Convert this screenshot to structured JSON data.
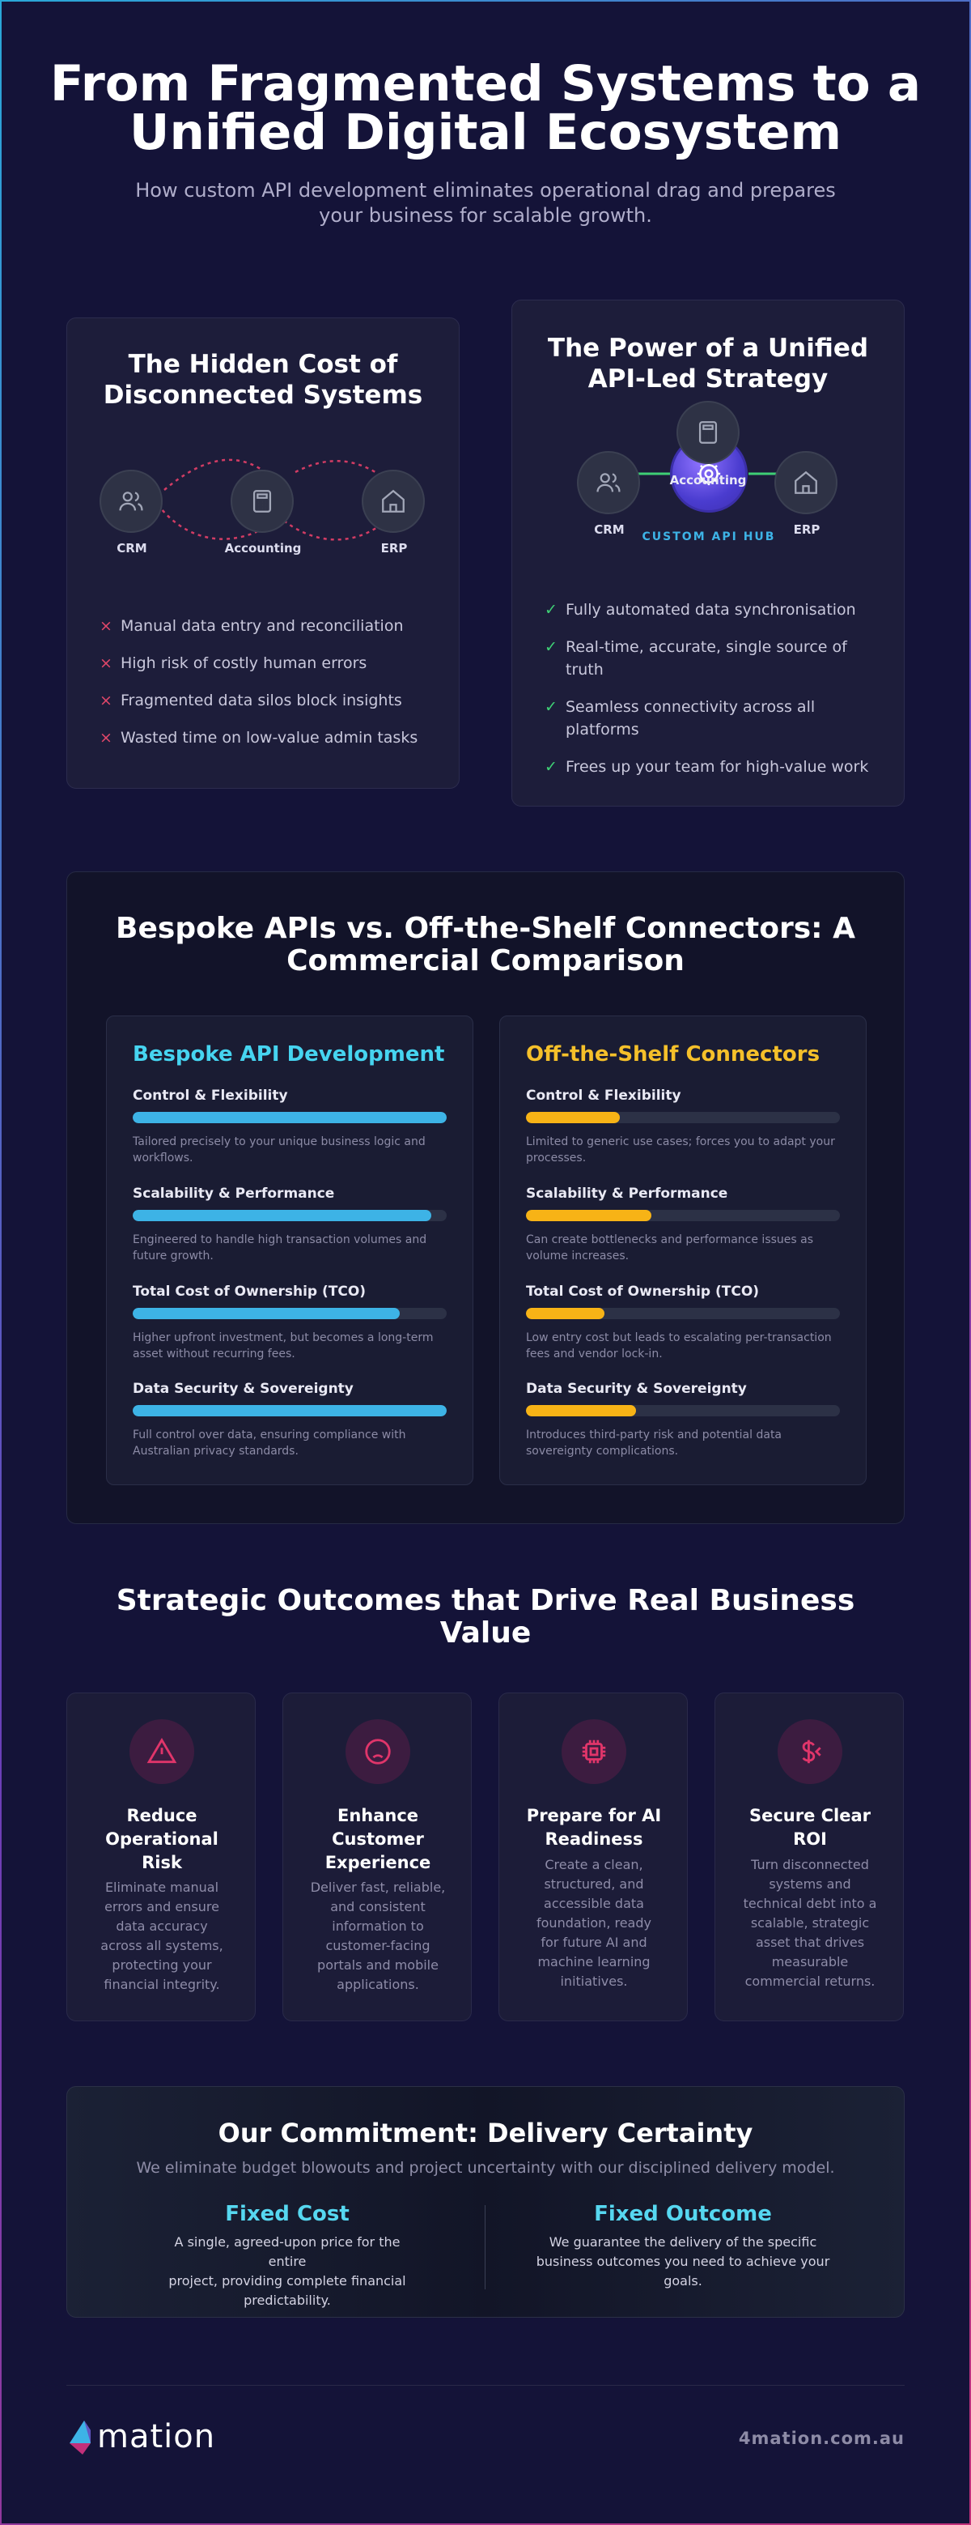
{
  "hero": {
    "title_line1": "From Fragmented Systems to a",
    "title_line2": "Unified Digital Ecosystem",
    "subtitle_line1": "How custom API development eliminates operational drag and prepares",
    "subtitle_line2": "your business for scalable growth."
  },
  "disconnected": {
    "title_line1": "The Hidden Cost of",
    "title_line2": "Disconnected Systems",
    "nodes": [
      {
        "label": "CRM",
        "icon": "users-icon"
      },
      {
        "label": "Accounting",
        "icon": "calculator-icon"
      },
      {
        "label": "ERP",
        "icon": "home-icon"
      }
    ],
    "marker": "×",
    "points": [
      "Manual data entry and reconciliation",
      "High risk of costly human errors",
      "Fragmented data silos block insights",
      "Wasted time on low-value admin tasks"
    ]
  },
  "unified": {
    "title_line1": "The Power of a Unified",
    "title_line2": "API-Led Strategy",
    "nodes": [
      {
        "label": "CRM",
        "icon": "users-icon"
      },
      {
        "label": "Accounting",
        "icon": "calculator-icon"
      },
      {
        "label": "ERP",
        "icon": "home-icon"
      }
    ],
    "hub_label": "CUSTOM API HUB",
    "marker": "✓",
    "points": [
      "Fully automated data synchronisation",
      "Real-time, accurate, single source of truth",
      "Seamless connectivity across all platforms",
      "Frees up your team for high-value work"
    ]
  },
  "comparison": {
    "title_line1": "Bespoke APIs vs. Off-the-Shelf Connectors: A",
    "title_line2": "Commercial Comparison",
    "bespoke": {
      "title": "Bespoke API Development",
      "color": "#46d4f0",
      "bar_color": "#3db3e6",
      "metrics": [
        {
          "name": "Control & Flexibility",
          "score": 100,
          "desc": "Tailored precisely to your unique business logic and workflows."
        },
        {
          "name": "Scalability & Performance",
          "score": 95,
          "desc": "Engineered to handle high transaction volumes and future growth."
        },
        {
          "name": "Total Cost of Ownership (TCO)",
          "score": 85,
          "desc": "Higher upfront investment, but becomes a long-term asset without recurring fees."
        },
        {
          "name": "Data Security & Sovereignty",
          "score": 100,
          "desc": "Full control over data, ensuring compliance with Australian privacy standards."
        }
      ]
    },
    "offshelf": {
      "title": "Off-the-Shelf Connectors",
      "color": "#f5c02a",
      "bar_color": "#f7b316",
      "metrics": [
        {
          "name": "Control & Flexibility",
          "score": 30,
          "desc": "Limited to generic use cases; forces you to adapt your processes."
        },
        {
          "name": "Scalability & Performance",
          "score": 40,
          "desc": "Can create bottlenecks and performance issues as volume increases."
        },
        {
          "name": "Total Cost of Ownership (TCO)",
          "score": 25,
          "desc": "Low entry cost but leads to escalating per-transaction fees and vendor lock-in."
        },
        {
          "name": "Data Security & Sovereignty",
          "score": 35,
          "desc": "Introduces third-party risk and potential data sovereignty complications."
        }
      ]
    }
  },
  "outcomes": {
    "title_line1": "Strategic Outcomes that Drive Real Business",
    "title_line2": "Value",
    "icon_color": "#e0356a",
    "cards": [
      {
        "icon": "warning-icon",
        "title_lines": [
          "Reduce",
          "Operational",
          "Risk"
        ],
        "desc_lines": [
          "Eliminate manual",
          "errors and ensure",
          "data accuracy",
          "across all systems,",
          "protecting your",
          "financial integrity."
        ]
      },
      {
        "icon": "frown-icon",
        "title_lines": [
          "Enhance",
          "Customer",
          "Experience"
        ],
        "desc_lines": [
          "Deliver fast, reliable,",
          "and consistent",
          "information to",
          "customer-facing",
          "portals and mobile",
          "applications."
        ]
      },
      {
        "icon": "cpu-chip-icon",
        "title_lines": [
          "Prepare for AI",
          "Readiness"
        ],
        "desc_lines": [
          "Create a clean,",
          "structured, and",
          "accessible data",
          "foundation, ready",
          "for future AI and",
          "machine learning",
          "initiatives."
        ]
      },
      {
        "icon": "dollar-icon",
        "title_lines": [
          "Secure Clear",
          "ROI"
        ],
        "desc_lines": [
          "Turn disconnected",
          "systems and",
          "technical debt into a",
          "scalable, strategic",
          "asset that drives",
          "measurable",
          "commercial returns."
        ]
      }
    ]
  },
  "commitment": {
    "title": "Our Commitment: Delivery Certainty",
    "subtitle": "We eliminate budget blowouts and project uncertainty with our disciplined delivery model.",
    "items": [
      {
        "title": "Fixed Cost",
        "desc_lines": [
          "A single, agreed-upon price for the entire",
          "project, providing complete financial",
          "predictability."
        ]
      },
      {
        "title": "Fixed Outcome",
        "desc_lines": [
          "We guarantee the delivery of the specific",
          "business outcomes you need to achieve your",
          "goals."
        ]
      }
    ]
  },
  "footer": {
    "logo_text": "mation",
    "site": "4mation.com.au"
  }
}
